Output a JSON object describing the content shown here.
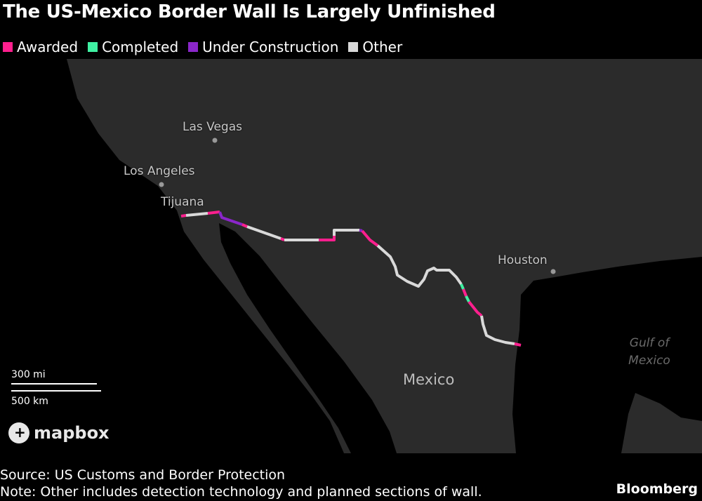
{
  "title": "The US-Mexico Border Wall Is Largely Unfinished",
  "legend": [
    {
      "label": "Awarded",
      "color": "#ff1f8e"
    },
    {
      "label": "Completed",
      "color": "#3ff0a2"
    },
    {
      "label": "Under Construction",
      "color": "#8a26c9"
    },
    {
      "label": "Other",
      "color": "#d9d9d9"
    }
  ],
  "map": {
    "land_color": "#2b2b2b",
    "water_color": "#000000",
    "cities": {
      "las_vegas": "Las Vegas",
      "los_angeles": "Los Angeles",
      "tijuana": "Tijuana",
      "houston": "Houston"
    },
    "country": "Mexico",
    "water": {
      "line1": "Gulf of",
      "line2": "Mexico"
    },
    "scale": {
      "miles": "300 mi",
      "km": "500 km"
    },
    "attribution": "mapbox"
  },
  "footer": {
    "source": "Source: US Customs and Border Protection",
    "note": "Note: Other includes detection technology and planned sections of wall.",
    "brand": "Bloomberg"
  }
}
